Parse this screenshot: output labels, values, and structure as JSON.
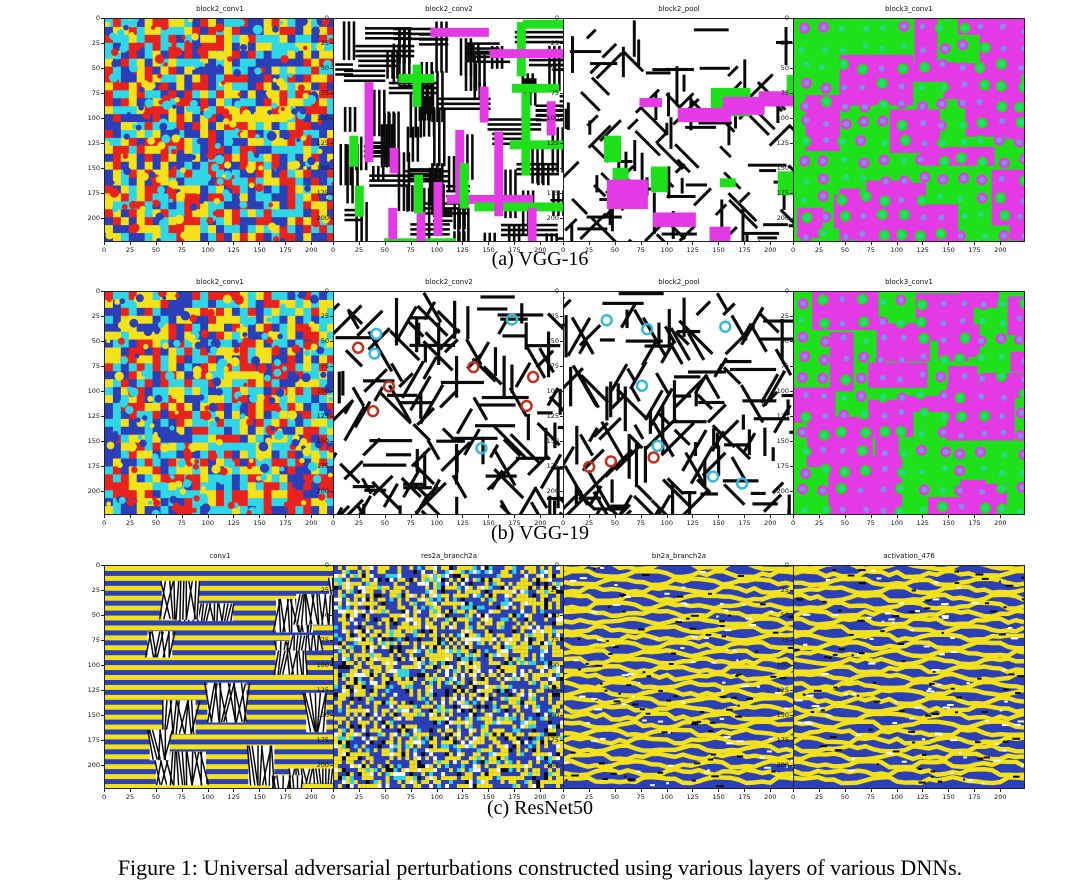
{
  "rows": [
    {
      "caption": "(a) VGG-16",
      "panels": [
        {
          "title": "block2_conv1",
          "pattern": "rgb-dots"
        },
        {
          "title": "block2_conv2",
          "pattern": "maze-pg"
        },
        {
          "title": "block2_pool",
          "pattern": "stripes-pg"
        },
        {
          "title": "block3_conv1",
          "pattern": "blobs-pg"
        }
      ]
    },
    {
      "caption": "(b) VGG-19",
      "panels": [
        {
          "title": "block2_conv1",
          "pattern": "rgb-dots"
        },
        {
          "title": "block2_conv2",
          "pattern": "stripes-bw"
        },
        {
          "title": "block2_pool",
          "pattern": "stripes-bw"
        },
        {
          "title": "block3_conv1",
          "pattern": "blobs-pg"
        }
      ]
    },
    {
      "caption": "(c) ResNet50",
      "panels": [
        {
          "title": "conv1",
          "pattern": "bands-by"
        },
        {
          "title": "res2a_branch2a",
          "pattern": "noise-by"
        },
        {
          "title": "bn2a_branch2a",
          "pattern": "waves-by"
        },
        {
          "title": "activation_476",
          "pattern": "waves-by"
        }
      ]
    }
  ],
  "axis": {
    "x_ticks": [
      "0",
      "25",
      "50",
      "75",
      "100",
      "125",
      "150",
      "175",
      "200"
    ],
    "y_ticks": [
      "0",
      "25",
      "50",
      "75",
      "100",
      "125",
      "150",
      "175",
      "200"
    ],
    "range": [
      0,
      224
    ]
  },
  "figure_caption": "Figure 1: Universal adversarial perturbations constructed using various layers of various DNNs.",
  "colors": {
    "red": "#e8231f",
    "yellow": "#f3e21a",
    "cyan": "#2fd6e6",
    "blue": "#2a3fb8",
    "magenta": "#e43ae6",
    "green": "#1ee01b",
    "black": "#0a0a0a",
    "white": "#ffffff",
    "marker_red": "#c0301f",
    "marker_cyan": "#35b8e0"
  }
}
